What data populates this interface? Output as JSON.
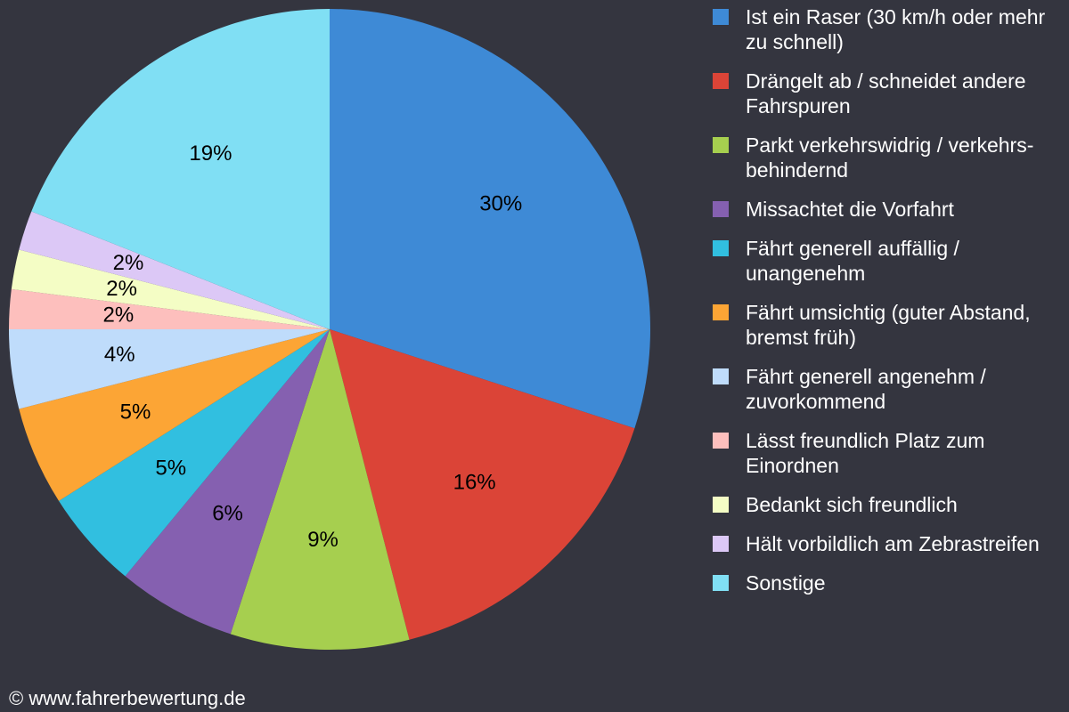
{
  "chart_data": {
    "type": "pie",
    "categories": [
      "Ist ein Raser (30 km/h oder mehr zu schnell)",
      "Drängelt ab / schneidet andere Fahrspuren",
      "Parkt verkehrswidrig / verkehrs-behindernd",
      "Missachtet die Vorfahrt",
      "Fährt generell auffällig / unangenehm",
      "Fährt umsichtig (guter Abstand, bremst früh)",
      "Fährt generell angenehm / zuvorkommend",
      "Lässt freundlich Platz zum Einordnen",
      "Bedankt sich freundlich",
      "Hält vorbildlich am Zebrastreifen",
      "Sonstige"
    ],
    "values": [
      30,
      16,
      9,
      6,
      5,
      5,
      4,
      2,
      2,
      2,
      19
    ],
    "value_labels": [
      "30%",
      "16%",
      "9%",
      "6%",
      "5%",
      "5%",
      "4%",
      "2%",
      "2%",
      "2%",
      "19%"
    ],
    "colors": [
      "#3e8ad6",
      "#db4437",
      "#a6cf4f",
      "#8560b0",
      "#31bfe0",
      "#fca535",
      "#bfdcfb",
      "#fdbfbd",
      "#f4fdc5",
      "#dcc8f6",
      "#80dff4"
    ],
    "legend": "right"
  },
  "footer": "© www.fahrerbewertung.de"
}
